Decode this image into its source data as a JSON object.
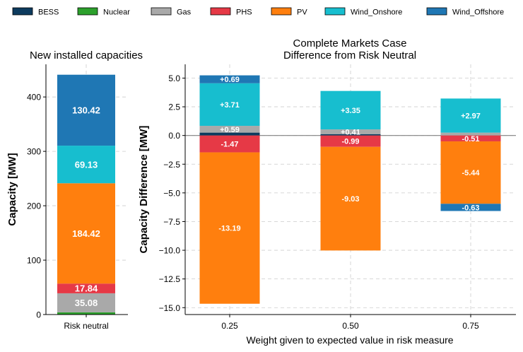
{
  "legend": [
    {
      "label": "BESS",
      "color": "#0d3b5e"
    },
    {
      "label": "Nuclear",
      "color": "#2ca02c"
    },
    {
      "label": "Gas",
      "color": "#a9a9a9"
    },
    {
      "label": "PHS",
      "color": "#e63946"
    },
    {
      "label": "PV",
      "color": "#ff7f0e"
    },
    {
      "label": "Wind_Onshore",
      "color": "#17becf"
    },
    {
      "label": "Wind_Offshore",
      "color": "#1f77b4"
    }
  ],
  "chart_data": [
    {
      "type": "bar",
      "stacked": true,
      "title": "New installed capacities",
      "xlabel": "",
      "ylabel": "Capacity [MW]",
      "categories": [
        "Risk neutral"
      ],
      "ylim": [
        0,
        460
      ],
      "yticks": [
        0,
        100,
        200,
        300,
        400
      ],
      "grid": true,
      "series": [
        {
          "name": "Nuclear",
          "color": "#2ca02c",
          "values": [
            4
          ]
        },
        {
          "name": "Gas",
          "color": "#a9a9a9",
          "values": [
            35.08
          ]
        },
        {
          "name": "PHS",
          "color": "#e63946",
          "values": [
            17.84
          ]
        },
        {
          "name": "PV",
          "color": "#ff7f0e",
          "values": [
            184.42
          ]
        },
        {
          "name": "Wind_Onshore",
          "color": "#17becf",
          "values": [
            69.13
          ]
        },
        {
          "name": "Wind_Offshore",
          "color": "#1f77b4",
          "values": [
            130.42
          ]
        }
      ],
      "data_labels": [
        {
          "series": "Gas",
          "text": "35.08"
        },
        {
          "series": "PHS",
          "text": "17.84"
        },
        {
          "series": "PV",
          "text": "184.42"
        },
        {
          "series": "Wind_Onshore",
          "text": "69.13"
        },
        {
          "series": "Wind_Offshore",
          "text": "130.42"
        }
      ]
    },
    {
      "type": "bar",
      "stacked": true,
      "title": "Complete Markets Case",
      "subtitle": "Difference from Risk Neutral",
      "xlabel": "Weight given to expected value in risk measure",
      "ylabel": "Capacity Difference [MW]",
      "categories": [
        "0.25",
        "0.50",
        "0.75"
      ],
      "ylim": [
        -15.6,
        6.2
      ],
      "yticks": [
        -15.0,
        -12.5,
        -10.0,
        -7.5,
        -5.0,
        -2.5,
        0.0,
        2.5,
        5.0
      ],
      "ytick_labels": [
        "−15.0",
        "−12.5",
        "−10.0",
        "−7.5",
        "−5.0",
        "−2.5",
        "0.0",
        "2.5",
        "5.0"
      ],
      "grid": true,
      "zero_line": true,
      "series": [
        {
          "name": "BESS",
          "color": "#0d3b5e",
          "values": [
            0.25,
            0.12,
            0.0
          ]
        },
        {
          "name": "Nuclear",
          "color": "#2ca02c",
          "values": [
            0,
            0,
            0
          ]
        },
        {
          "name": "Gas",
          "color": "#a9a9a9",
          "values": [
            0.59,
            0.41,
            0.25
          ]
        },
        {
          "name": "PHS",
          "color": "#e63946",
          "values": [
            -1.47,
            -0.99,
            -0.51
          ]
        },
        {
          "name": "PV",
          "color": "#ff7f0e",
          "values": [
            -13.19,
            -9.03,
            -5.44
          ]
        },
        {
          "name": "Wind_Onshore",
          "color": "#17becf",
          "values": [
            3.71,
            3.35,
            2.97
          ]
        },
        {
          "name": "Wind_Offshore",
          "color": "#1f77b4",
          "values": [
            0.69,
            0.0,
            -0.63
          ]
        }
      ],
      "data_labels": [
        {
          "series": "Wind_Offshore",
          "cat": 0,
          "text": "+0.69"
        },
        {
          "series": "Wind_Onshore",
          "cat": 0,
          "text": "+3.71"
        },
        {
          "series": "Gas",
          "cat": 0,
          "text": "+0.59"
        },
        {
          "series": "PHS",
          "cat": 0,
          "text": "-1.47"
        },
        {
          "series": "PV",
          "cat": 0,
          "text": "-13.19"
        },
        {
          "series": "Wind_Onshore",
          "cat": 1,
          "text": "+3.35"
        },
        {
          "series": "Gas",
          "cat": 1,
          "text": "+0.41"
        },
        {
          "series": "PHS",
          "cat": 1,
          "text": "-0.99"
        },
        {
          "series": "PV",
          "cat": 1,
          "text": "-9.03"
        },
        {
          "series": "Wind_Onshore",
          "cat": 2,
          "text": "+2.97"
        },
        {
          "series": "PHS",
          "cat": 2,
          "text": "-0.51"
        },
        {
          "series": "PV",
          "cat": 2,
          "text": "-5.44"
        },
        {
          "series": "Wind_Offshore",
          "cat": 2,
          "text": "-0.63"
        }
      ]
    }
  ]
}
